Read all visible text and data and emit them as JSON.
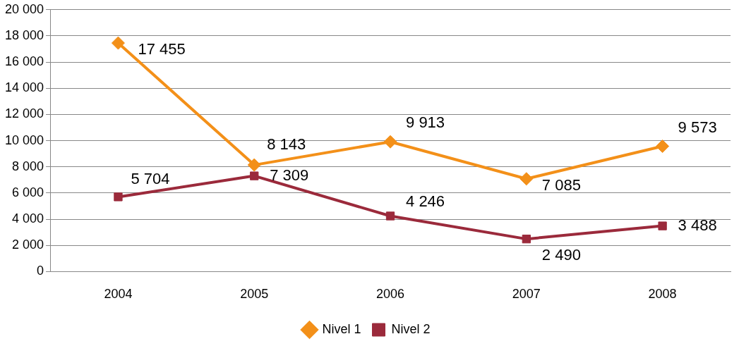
{
  "chart_data": {
    "type": "line",
    "categories": [
      "2004",
      "2005",
      "2006",
      "2007",
      "2008"
    ],
    "series": [
      {
        "name": "Nivel 1",
        "color": "#f39019",
        "marker": "diamond",
        "values": [
          17455,
          8143,
          9913,
          7085,
          9573
        ],
        "value_labels": [
          "17 455",
          "8 143",
          "9 913",
          "7 085",
          "9 573"
        ]
      },
      {
        "name": "Nivel 2",
        "color": "#9b2a3b",
        "marker": "square",
        "values": [
          5704,
          7309,
          4246,
          2490,
          3488
        ],
        "value_labels": [
          "5 704",
          "7 309",
          "4 246",
          "2 490",
          "3 488"
        ]
      }
    ],
    "ylim": [
      0,
      20000
    ],
    "yticks": [
      {
        "value": 0,
        "label": "0"
      },
      {
        "value": 2000,
        "label": "2 000"
      },
      {
        "value": 4000,
        "label": "4 000"
      },
      {
        "value": 6000,
        "label": "6 000"
      },
      {
        "value": 8000,
        "label": "8 000"
      },
      {
        "value": 10000,
        "label": "10 000"
      },
      {
        "value": 12000,
        "label": "12 000"
      },
      {
        "value": 14000,
        "label": "14 000"
      },
      {
        "value": 16000,
        "label": "16 000"
      },
      {
        "value": 18000,
        "label": "18 000"
      },
      {
        "value": 20000,
        "label": "20 000"
      }
    ],
    "grid": "y",
    "legend": "bottom",
    "line_style": "solid"
  }
}
